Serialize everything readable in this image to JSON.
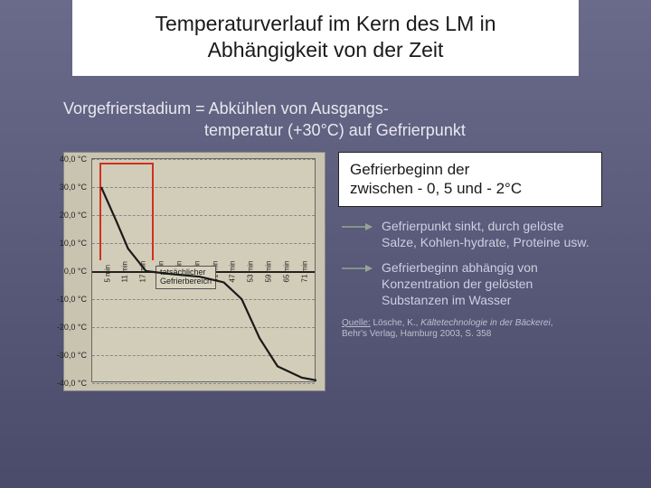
{
  "title_line1": "Temperaturverlauf im Kern des LM in",
  "title_line2": "Abhängigkeit von der Zeit",
  "subtitle_prefix": "Vorgefrierstadium  = Abkühlen  von Ausgangs-",
  "subtitle_indent": "temperatur (+30°C) auf Gefrierpunkt",
  "box1_l1": "Gefrierbeginn der",
  "box1_l2": "zwischen - 0, 5 und - 2°C",
  "note1": "Gefrierpunkt sinkt, durch gelöste Salze, Kohlen-hydrate, Proteine usw.",
  "note2": "Gefrierbeginn abhängig von Konzentration der gelösten Substanzen im Wasser",
  "citation_label": "Quelle:",
  "citation_rest": " Lösche, K., ",
  "citation_italic": "Kältetechnologie in der Bäckerei",
  "citation_tail": ", Behr's Verlag, Hamburg 2003, S. 358",
  "gefrier_l1": "tatsächlicher",
  "gefrier_l2": "Gefrierbereich",
  "chart": {
    "type": "line",
    "y_ticks": [
      40,
      30,
      20,
      10,
      0,
      -10,
      -20,
      -30,
      -40
    ],
    "y_labels": [
      "40,0 °C",
      "30,0 °C",
      "20,0 °C",
      "10,0 °C",
      "0,0 °C",
      "-10,0 °C",
      "-20,0 °C",
      "-30,0 °C",
      "-40,0 °C"
    ],
    "x_ticks": [
      5,
      11,
      17,
      23,
      29,
      35,
      41,
      47,
      53,
      59,
      65,
      71
    ],
    "x_labels": [
      "5 min",
      "11 min",
      "17 min",
      "23 min",
      "29 min",
      "35 min",
      "41 min",
      "47 min",
      "53 min",
      "59 min",
      "65 min",
      "71 min"
    ],
    "ylim": [
      -40,
      40
    ],
    "xlim": [
      0,
      75
    ],
    "curve_points": [
      [
        3,
        30
      ],
      [
        8,
        18
      ],
      [
        12,
        8
      ],
      [
        18,
        0
      ],
      [
        26,
        -1
      ],
      [
        36,
        -2
      ],
      [
        44,
        -4
      ],
      [
        50,
        -10
      ],
      [
        56,
        -24
      ],
      [
        62,
        -34
      ],
      [
        70,
        -38
      ],
      [
        75,
        -39
      ]
    ],
    "curve_color": "#1a1a1a",
    "curve_width": 2.2,
    "bg_color": "#d2cdb8",
    "grid_color": "#888888",
    "bracket_color": "#d03020",
    "heavy_line_y": 0,
    "heavy_line_color": "#222222"
  },
  "arrow_color": "#8fa890"
}
